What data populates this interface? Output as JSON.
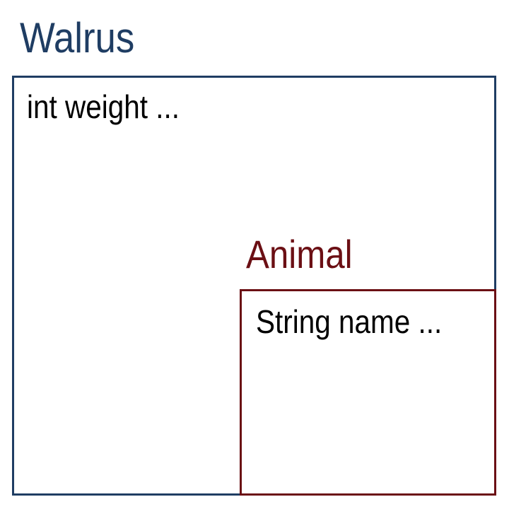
{
  "outer_class": {
    "name": "Walrus",
    "field": "int weight ...",
    "color": "#1f3d63"
  },
  "inner_class": {
    "name": "Animal",
    "field": "String name ...",
    "color": "#6b0f14"
  }
}
